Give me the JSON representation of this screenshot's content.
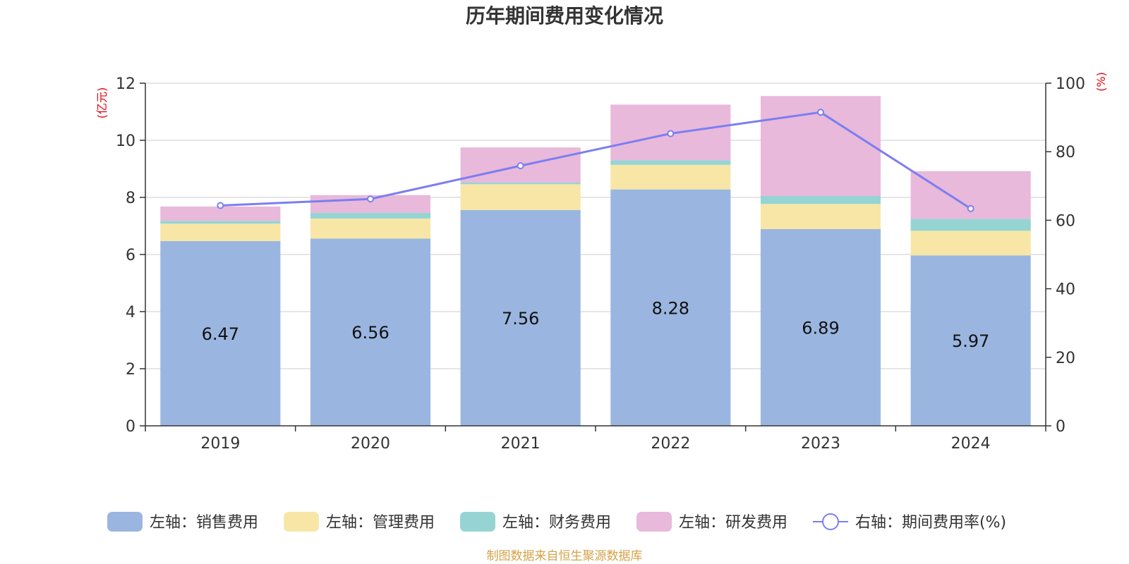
{
  "title": "历年期间费用变化情况",
  "source": "制图数据来自恒生聚源数据库",
  "left_axis_unit": "(亿元)",
  "right_axis_unit": "(%)",
  "chart_data": {
    "type": "bar",
    "stacked": true,
    "title": "历年期间费用变化情况",
    "categories": [
      "2019",
      "2020",
      "2021",
      "2022",
      "2023",
      "2024"
    ],
    "y_left": {
      "unit": "(亿元)",
      "ylim": [
        0,
        12
      ],
      "ticks": [
        0,
        2,
        4,
        6,
        8,
        10,
        12
      ]
    },
    "y_right": {
      "unit": "(%)",
      "ylim": [
        0,
        100
      ],
      "ticks": [
        0,
        20,
        40,
        60,
        80,
        100
      ]
    },
    "grid": true,
    "legend_position": "bottom",
    "series": [
      {
        "name": "左轴：销售费用",
        "axis": "left",
        "type": "bar",
        "color": "#9ab6e0",
        "values": [
          6.47,
          6.56,
          7.56,
          8.28,
          6.89,
          5.97
        ],
        "labels": [
          "6.47",
          "6.56",
          "7.56",
          "8.28",
          "6.89",
          "5.97"
        ]
      },
      {
        "name": "左轴：管理费用",
        "axis": "left",
        "type": "bar",
        "color": "#f7e6a6",
        "values": [
          0.61,
          0.7,
          0.9,
          0.86,
          0.88,
          0.86
        ]
      },
      {
        "name": "左轴：财务费用",
        "axis": "left",
        "type": "bar",
        "color": "#96d4d4",
        "values": [
          0.1,
          0.2,
          0.06,
          0.16,
          0.28,
          0.42
        ]
      },
      {
        "name": "左轴：研发费用",
        "axis": "left",
        "type": "bar",
        "color": "#e8b9da",
        "values": [
          0.5,
          0.62,
          1.23,
          1.95,
          3.5,
          1.67
        ]
      },
      {
        "name": "右轴：期间费用率(%)",
        "axis": "right",
        "type": "line",
        "color": "#7b7ef0",
        "values": [
          64.3,
          66.2,
          75.9,
          85.3,
          91.5,
          63.4
        ]
      }
    ]
  }
}
